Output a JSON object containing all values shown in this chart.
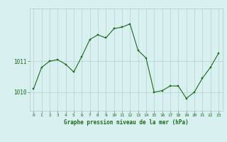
{
  "x": [
    0,
    1,
    2,
    3,
    4,
    5,
    6,
    7,
    8,
    9,
    10,
    11,
    12,
    13,
    14,
    15,
    16,
    17,
    18,
    19,
    20,
    21,
    22,
    23
  ],
  "y": [
    1010.1,
    1010.8,
    1011.0,
    1011.05,
    1010.9,
    1010.65,
    1011.15,
    1011.7,
    1011.85,
    1011.75,
    1012.05,
    1012.1,
    1012.2,
    1011.35,
    1011.1,
    1010.0,
    1010.05,
    1010.2,
    1010.2,
    1009.8,
    1010.0,
    1010.45,
    1010.8,
    1011.25
  ],
  "line_color": "#1a6b1a",
  "marker_color": "#1a6b1a",
  "bg_color": "#d8f0f0",
  "grid_color": "#b0c8c8",
  "xlabel": "Graphe pression niveau de la mer (hPa)",
  "xlabel_color": "#1a6b1a",
  "tick_color": "#1a6b1a",
  "ytick_labels": [
    "1010",
    "1011"
  ],
  "ytick_values": [
    1010,
    1011
  ],
  "xlim": [
    -0.5,
    23.5
  ],
  "ylim": [
    1009.4,
    1012.7
  ]
}
